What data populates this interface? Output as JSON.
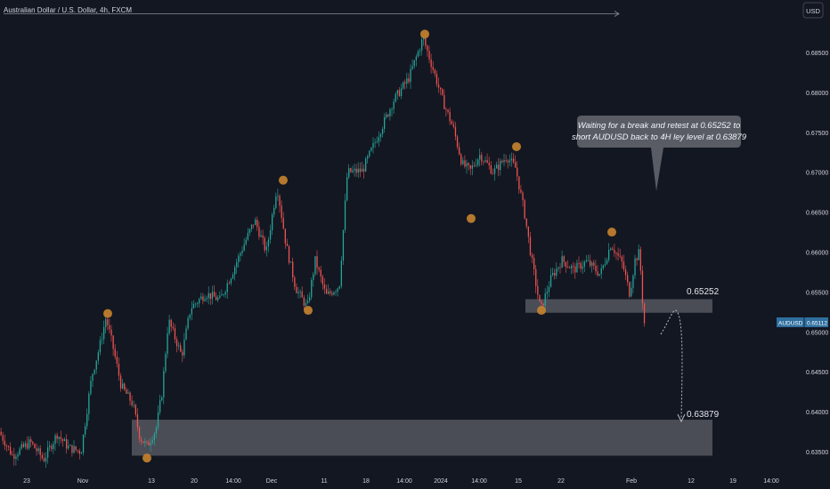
{
  "header": {
    "title": "Australian Dollar / U.S. Dollar, 4h, FXCM",
    "currency_button": "USD"
  },
  "price_tag": {
    "symbol": "AUDUSD",
    "value": "0.65112"
  },
  "annotations": {
    "callout_line1": "Waiting for a break and retest at 0.65252 to",
    "callout_line2": "short AUDUSD back to 4H ley level at 0.63879",
    "level_upper_label": "0.65252",
    "level_lower_label": "0.63879"
  },
  "colors": {
    "background": "#131722",
    "bull": "#26a69a",
    "bear": "#ef5350",
    "swing_marker": "#c8832e",
    "zone": "#5d6068",
    "price_tag": "#2f6f9f",
    "axis_text": "#d1d4dc"
  },
  "chart_data": {
    "type": "candlestick",
    "symbol": "AUDUSD",
    "timeframe": "4h",
    "y_axis": {
      "ticks": [
        0.635,
        0.64,
        0.645,
        0.65,
        0.655,
        0.66,
        0.665,
        0.67,
        0.675,
        0.68,
        0.685
      ],
      "tick_labels": [
        "0.63500",
        "0.64000",
        "0.64500",
        "0.65000",
        "0.65500",
        "0.66000",
        "0.66500",
        "0.67000",
        "0.67500",
        "0.68000",
        "0.68500"
      ],
      "range": [
        0.6335,
        0.6883
      ]
    },
    "x_axis": {
      "tick_labels": [
        "23",
        "Nov",
        "13",
        "20",
        "14:00",
        "Dec",
        "11",
        "18",
        "14:00",
        "2024",
        "14:00",
        "15",
        "22",
        "Feb",
        "12",
        "19",
        "14:00"
      ]
    },
    "price_path": [
      {
        "t": 0,
        "p": 0.6375
      },
      {
        "t": 15,
        "p": 0.6345
      },
      {
        "t": 35,
        "p": 0.6362
      },
      {
        "t": 50,
        "p": 0.634
      },
      {
        "t": 65,
        "p": 0.6372
      },
      {
        "t": 78,
        "p": 0.6355
      },
      {
        "t": 92,
        "p": 0.635
      },
      {
        "t": 104,
        "p": 0.6445
      },
      {
        "t": 112,
        "p": 0.6478
      },
      {
        "t": 120,
        "p": 0.6518
      },
      {
        "t": 128,
        "p": 0.648
      },
      {
        "t": 137,
        "p": 0.6432
      },
      {
        "t": 150,
        "p": 0.641
      },
      {
        "t": 158,
        "p": 0.6368
      },
      {
        "t": 166,
        "p": 0.6357
      },
      {
        "t": 176,
        "p": 0.6378
      },
      {
        "t": 183,
        "p": 0.6425
      },
      {
        "t": 190,
        "p": 0.6515
      },
      {
        "t": 205,
        "p": 0.647
      },
      {
        "t": 215,
        "p": 0.653
      },
      {
        "t": 232,
        "p": 0.6548
      },
      {
        "t": 248,
        "p": 0.654
      },
      {
        "t": 262,
        "p": 0.6575
      },
      {
        "t": 275,
        "p": 0.661
      },
      {
        "t": 287,
        "p": 0.664
      },
      {
        "t": 300,
        "p": 0.66
      },
      {
        "t": 312,
        "p": 0.6683
      },
      {
        "t": 322,
        "p": 0.661
      },
      {
        "t": 333,
        "p": 0.6555
      },
      {
        "t": 346,
        "p": 0.653
      },
      {
        "t": 355,
        "p": 0.659
      },
      {
        "t": 367,
        "p": 0.6545
      },
      {
        "t": 382,
        "p": 0.6558
      },
      {
        "t": 391,
        "p": 0.67
      },
      {
        "t": 408,
        "p": 0.6702
      },
      {
        "t": 425,
        "p": 0.6745
      },
      {
        "t": 443,
        "p": 0.679
      },
      {
        "t": 460,
        "p": 0.6818
      },
      {
        "t": 476,
        "p": 0.6868
      },
      {
        "t": 487,
        "p": 0.683
      },
      {
        "t": 498,
        "p": 0.679
      },
      {
        "t": 510,
        "p": 0.6755
      },
      {
        "t": 520,
        "p": 0.671
      },
      {
        "t": 529,
        "p": 0.6702
      },
      {
        "t": 540,
        "p": 0.6722
      },
      {
        "t": 555,
        "p": 0.67
      },
      {
        "t": 570,
        "p": 0.672
      },
      {
        "t": 580,
        "p": 0.6705
      },
      {
        "t": 590,
        "p": 0.6648
      },
      {
        "t": 598,
        "p": 0.659
      },
      {
        "t": 608,
        "p": 0.6527
      },
      {
        "t": 620,
        "p": 0.6568
      },
      {
        "t": 632,
        "p": 0.659
      },
      {
        "t": 645,
        "p": 0.6578
      },
      {
        "t": 660,
        "p": 0.6588
      },
      {
        "t": 675,
        "p": 0.6572
      },
      {
        "t": 687,
        "p": 0.661
      },
      {
        "t": 700,
        "p": 0.6585
      },
      {
        "t": 708,
        "p": 0.6548
      },
      {
        "t": 714,
        "p": 0.659
      },
      {
        "t": 719,
        "p": 0.66
      },
      {
        "t": 724,
        "p": 0.6511
      }
    ],
    "swing_points": [
      {
        "t": 121,
        "p": 0.6523
      },
      {
        "t": 165,
        "p": 0.6342
      },
      {
        "t": 318,
        "p": 0.669
      },
      {
        "t": 346,
        "p": 0.6527
      },
      {
        "t": 477,
        "p": 0.6873
      },
      {
        "t": 529,
        "p": 0.6642
      },
      {
        "t": 580,
        "p": 0.6732
      },
      {
        "t": 608,
        "p": 0.6527
      },
      {
        "t": 687,
        "p": 0.6625
      }
    ],
    "levels": [
      {
        "label": "0.65252",
        "from": 0.6524,
        "to": 0.6541,
        "x_start": 590,
        "x_end": 800
      },
      {
        "label": "0.63879",
        "from": 0.6345,
        "to": 0.639,
        "x_start": 148,
        "x_end": 800
      }
    ],
    "last_price": 0.65112,
    "grid": false,
    "legend": "none"
  }
}
